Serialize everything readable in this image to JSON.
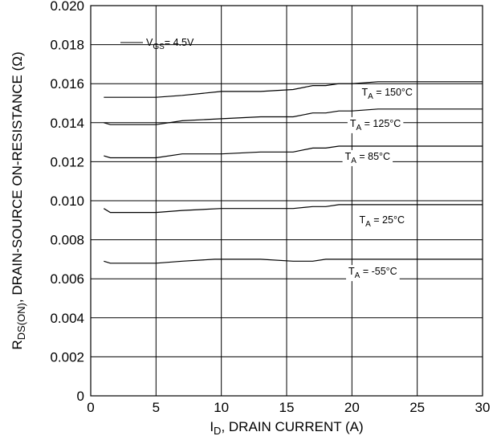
{
  "chart_data": {
    "type": "line",
    "xlabel": {
      "main": "I",
      "sub": "D",
      "rest": ", DRAIN CURRENT (A)"
    },
    "ylabel": {
      "main": "R",
      "sub": "DS(ON)",
      "rest": ", DRAIN-SOURCE ON-RESISTANCE (Ω)"
    },
    "xlim": [
      0,
      30
    ],
    "ylim": [
      0,
      0.02
    ],
    "xticks": [
      0,
      5,
      10,
      15,
      20,
      25,
      30
    ],
    "xtick_labels": [
      "0",
      "5",
      "10",
      "15",
      "20",
      "25",
      "30"
    ],
    "yticks": [
      0,
      0.002,
      0.004,
      0.006,
      0.008,
      0.01,
      0.012,
      0.014,
      0.016,
      0.018,
      0.02
    ],
    "ytick_labels": [
      "0",
      "0.002",
      "0.004",
      "0.006",
      "0.008",
      "0.010",
      "0.012",
      "0.014",
      "0.016",
      "0.018",
      "0.020"
    ],
    "grid": true,
    "condition": {
      "main": "V",
      "sub": "GS",
      "rest": "= 4.5V"
    },
    "series": [
      {
        "name": "150°C",
        "label": {
          "main": "T",
          "sub": "A",
          "rest": " = 150°C"
        },
        "x": [
          1,
          5,
          7,
          10,
          13,
          15.5,
          17,
          18,
          19,
          20,
          22,
          30
        ],
        "y": [
          0.0153,
          0.0153,
          0.0154,
          0.0156,
          0.0156,
          0.0157,
          0.0159,
          0.0159,
          0.016,
          0.016,
          0.0161,
          0.0161
        ]
      },
      {
        "name": "125°C",
        "label": {
          "main": "T",
          "sub": "A",
          "rest": " = 125°C"
        },
        "x": [
          1,
          1.5,
          5,
          7,
          10,
          13,
          15.5,
          17,
          18,
          19,
          20,
          22,
          30
        ],
        "y": [
          0.014,
          0.0139,
          0.0139,
          0.0141,
          0.0142,
          0.0143,
          0.0143,
          0.0145,
          0.0145,
          0.0146,
          0.0146,
          0.0147,
          0.0147
        ]
      },
      {
        "name": "85°C",
        "label": {
          "main": "T",
          "sub": "A",
          "rest": " = 85°C"
        },
        "x": [
          1,
          1.5,
          5,
          7,
          10,
          13,
          15.5,
          17,
          18,
          19,
          20,
          30
        ],
        "y": [
          0.0123,
          0.0122,
          0.0122,
          0.0124,
          0.0124,
          0.0125,
          0.0125,
          0.0127,
          0.0127,
          0.0128,
          0.0128,
          0.0128
        ]
      },
      {
        "name": "25°C",
        "label": {
          "main": "T",
          "sub": "A",
          "rest": " = 25°C"
        },
        "x": [
          1,
          1.5,
          5,
          7,
          10,
          13,
          15.5,
          17,
          18,
          19,
          20,
          30
        ],
        "y": [
          0.0096,
          0.0094,
          0.0094,
          0.0095,
          0.0096,
          0.0096,
          0.0096,
          0.0097,
          0.0097,
          0.0098,
          0.0098,
          0.0098
        ]
      },
      {
        "name": "-55°C",
        "label": {
          "main": "T",
          "sub": "A",
          "rest": " = -55°C"
        },
        "x": [
          1,
          1.5,
          5,
          7,
          9.5,
          13,
          15.5,
          17,
          18,
          19,
          30
        ],
        "y": [
          0.0069,
          0.0068,
          0.0068,
          0.0069,
          0.007,
          0.007,
          0.0069,
          0.0069,
          0.007,
          0.007,
          0.007
        ]
      }
    ]
  }
}
